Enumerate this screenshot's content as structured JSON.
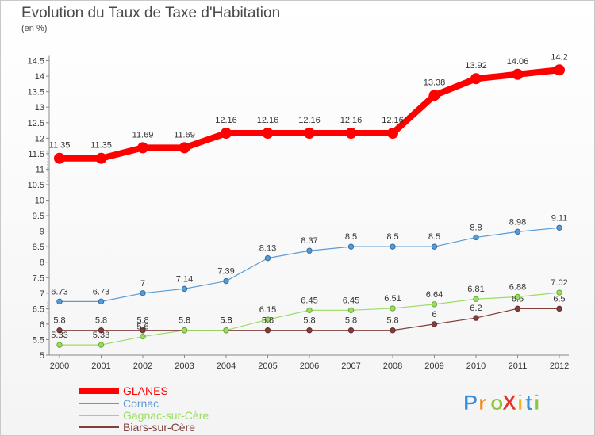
{
  "chart_data": {
    "type": "line",
    "title": "Evolution du Taux de Taxe d'Habitation",
    "unit": "(en %)",
    "x": [
      "2000",
      "2001",
      "2002",
      "2003",
      "2004",
      "2005",
      "2006",
      "2007",
      "2008",
      "2009",
      "2010",
      "2011",
      "2012"
    ],
    "ylim": [
      5,
      14.5
    ],
    "yticks": [
      "5",
      "5.5",
      "6",
      "6.5",
      "7",
      "7.5",
      "8",
      "8.5",
      "9",
      "9.5",
      "10",
      "10.5",
      "11",
      "11.5",
      "12",
      "12.5",
      "13",
      "13.5",
      "14",
      "14.5"
    ],
    "grid": false,
    "legend_position": "bottom-left",
    "series": [
      {
        "name": "GLANES",
        "color": "#ff0000",
        "labels": [
          "11.35",
          "11.35",
          "11.69",
          "11.69",
          "12.16",
          "12.16",
          "12.16",
          "12.16",
          "12.16",
          "13.38",
          "13.92",
          "14.06",
          "14.2"
        ],
        "values": [
          11.35,
          11.35,
          11.69,
          11.69,
          12.16,
          12.16,
          12.16,
          12.16,
          12.16,
          13.38,
          13.92,
          14.06,
          14.2
        ]
      },
      {
        "name": "Cornac",
        "color": "#5b9bd5",
        "labels": [
          "6.73",
          "6.73",
          "7",
          "7.14",
          "7.39",
          "8.13",
          "8.37",
          "8.5",
          "8.5",
          "8.5",
          "8.8",
          "8.98",
          "9.11"
        ],
        "values": [
          6.73,
          6.73,
          7,
          7.14,
          7.39,
          8.13,
          8.37,
          8.5,
          8.5,
          8.5,
          8.8,
          8.98,
          9.11
        ]
      },
      {
        "name": "Gagnac-sur-Cère",
        "color": "#99dd66",
        "labels": [
          "5.33",
          "5.33",
          "5.6",
          "5.8",
          "5.8",
          "6.15",
          "6.45",
          "6.45",
          "6.51",
          "6.64",
          "6.81",
          "6.88",
          "7.02"
        ],
        "values": [
          5.33,
          5.33,
          5.6,
          5.8,
          5.8,
          6.15,
          6.45,
          6.45,
          6.51,
          6.64,
          6.81,
          6.88,
          7.02
        ]
      },
      {
        "name": "Biars-sur-Cère",
        "color": "#7f3f3f",
        "labels": [
          "5.8",
          "5.8",
          "5.8",
          "5.8",
          "5.8",
          "5.8",
          "5.8",
          "5.8",
          "5.8",
          "6",
          "6.2",
          "6.5",
          "6.5"
        ],
        "values": [
          5.8,
          5.8,
          5.8,
          5.8,
          5.8,
          5.8,
          5.8,
          5.8,
          5.8,
          6,
          6.2,
          6.5,
          6.5
        ]
      }
    ]
  },
  "logo": {
    "text": "ProXiti",
    "letters": [
      {
        "ch": "P",
        "color": "#3a8fd8"
      },
      {
        "ch": "r",
        "color": "#f28c1e"
      },
      {
        "ch": "o",
        "color": "#8cc63f"
      },
      {
        "ch": "X",
        "color": "#e8312a"
      },
      {
        "ch": "i",
        "color": "#f5b21b"
      },
      {
        "ch": "t",
        "color": "#3a8fd8"
      },
      {
        "ch": "i",
        "color": "#8cc63f"
      }
    ]
  }
}
